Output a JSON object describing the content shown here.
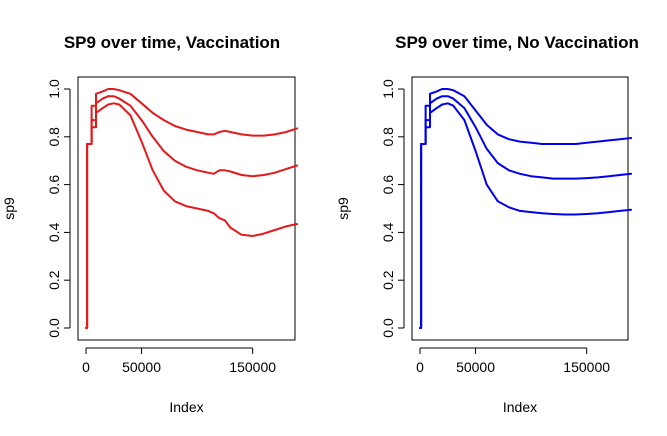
{
  "chart_data": [
    {
      "type": "line",
      "title": "SP9 over time, Vaccination",
      "xlabel": "Index",
      "ylabel": "sp9",
      "xlim": [
        0,
        200000
      ],
      "ylim": [
        0,
        1
      ],
      "xticks": [
        0,
        50000,
        150000
      ],
      "xtick_labels": [
        "0",
        "50000",
        "150000"
      ],
      "yticks": [
        0.0,
        0.2,
        0.4,
        0.6,
        0.8,
        1.0
      ],
      "ytick_labels": [
        "0.0",
        "0.2",
        "0.4",
        "0.6",
        "0.8",
        "1.0"
      ],
      "color": "#e31a1c",
      "series": [
        {
          "x": [
            0,
            1000,
            1000,
            5000,
            5000,
            9000,
            9000,
            15000,
            20000,
            25000,
            30000,
            40000,
            50000,
            60000,
            70000,
            80000,
            90000,
            100000,
            110000,
            115000,
            120000,
            125000,
            130000,
            140000,
            150000,
            160000,
            170000,
            180000,
            190000
          ],
          "y": [
            0.0,
            0.0,
            0.77,
            0.77,
            0.93,
            0.93,
            0.98,
            0.99,
            1.0,
            1.0,
            0.995,
            0.98,
            0.94,
            0.9,
            0.87,
            0.845,
            0.83,
            0.82,
            0.81,
            0.81,
            0.82,
            0.825,
            0.82,
            0.81,
            0.805,
            0.805,
            0.81,
            0.82,
            0.835
          ]
        },
        {
          "x": [
            0,
            1000,
            1000,
            5000,
            5000,
            9000,
            9000,
            15000,
            20000,
            25000,
            30000,
            40000,
            50000,
            60000,
            70000,
            80000,
            90000,
            100000,
            110000,
            115000,
            120000,
            125000,
            130000,
            140000,
            150000,
            160000,
            170000,
            180000,
            190000
          ],
          "y": [
            0.0,
            0.0,
            0.77,
            0.77,
            0.87,
            0.87,
            0.94,
            0.96,
            0.97,
            0.97,
            0.96,
            0.93,
            0.87,
            0.8,
            0.74,
            0.7,
            0.675,
            0.66,
            0.65,
            0.645,
            0.66,
            0.66,
            0.655,
            0.64,
            0.635,
            0.64,
            0.65,
            0.665,
            0.68
          ]
        },
        {
          "x": [
            0,
            1000,
            1000,
            5000,
            5000,
            9000,
            9000,
            15000,
            20000,
            25000,
            30000,
            40000,
            50000,
            60000,
            70000,
            80000,
            90000,
            100000,
            110000,
            115000,
            120000,
            125000,
            130000,
            140000,
            150000,
            160000,
            170000,
            180000,
            190000
          ],
          "y": [
            0.0,
            0.0,
            0.77,
            0.77,
            0.84,
            0.84,
            0.9,
            0.92,
            0.935,
            0.94,
            0.935,
            0.89,
            0.78,
            0.66,
            0.575,
            0.53,
            0.51,
            0.5,
            0.49,
            0.48,
            0.46,
            0.45,
            0.42,
            0.39,
            0.385,
            0.395,
            0.41,
            0.425,
            0.435
          ]
        }
      ]
    },
    {
      "type": "line",
      "title": "SP9 over time, No Vaccination",
      "xlabel": "Index",
      "ylabel": "sp9",
      "xlim": [
        0,
        200000
      ],
      "ylim": [
        0,
        1
      ],
      "xticks": [
        0,
        50000,
        150000
      ],
      "xtick_labels": [
        "0",
        "50000",
        "150000"
      ],
      "yticks": [
        0.0,
        0.2,
        0.4,
        0.6,
        0.8,
        1.0
      ],
      "ytick_labels": [
        "0.0",
        "0.2",
        "0.4",
        "0.6",
        "0.8",
        "1.0"
      ],
      "color": "#0000ee",
      "series": [
        {
          "x": [
            0,
            1000,
            1000,
            5000,
            5000,
            9000,
            9000,
            15000,
            20000,
            25000,
            30000,
            40000,
            50000,
            60000,
            70000,
            80000,
            90000,
            100000,
            110000,
            120000,
            130000,
            140000,
            150000,
            160000,
            170000,
            180000,
            190000
          ],
          "y": [
            0.0,
            0.0,
            0.77,
            0.77,
            0.93,
            0.93,
            0.98,
            0.99,
            1.0,
            1.0,
            0.995,
            0.97,
            0.91,
            0.85,
            0.81,
            0.79,
            0.78,
            0.775,
            0.77,
            0.77,
            0.77,
            0.77,
            0.775,
            0.78,
            0.785,
            0.79,
            0.795
          ]
        },
        {
          "x": [
            0,
            1000,
            1000,
            5000,
            5000,
            9000,
            9000,
            15000,
            20000,
            25000,
            30000,
            40000,
            50000,
            60000,
            70000,
            80000,
            90000,
            100000,
            110000,
            120000,
            130000,
            140000,
            150000,
            160000,
            170000,
            180000,
            190000
          ],
          "y": [
            0.0,
            0.0,
            0.77,
            0.77,
            0.87,
            0.87,
            0.94,
            0.96,
            0.97,
            0.97,
            0.96,
            0.92,
            0.84,
            0.75,
            0.69,
            0.66,
            0.645,
            0.635,
            0.63,
            0.625,
            0.625,
            0.625,
            0.627,
            0.63,
            0.635,
            0.64,
            0.645
          ]
        },
        {
          "x": [
            0,
            1000,
            1000,
            5000,
            5000,
            9000,
            9000,
            15000,
            20000,
            25000,
            30000,
            40000,
            50000,
            60000,
            70000,
            80000,
            90000,
            100000,
            110000,
            120000,
            130000,
            140000,
            150000,
            160000,
            170000,
            180000,
            190000
          ],
          "y": [
            0.0,
            0.0,
            0.77,
            0.77,
            0.84,
            0.84,
            0.9,
            0.92,
            0.935,
            0.94,
            0.93,
            0.87,
            0.74,
            0.6,
            0.53,
            0.505,
            0.49,
            0.485,
            0.48,
            0.477,
            0.475,
            0.475,
            0.477,
            0.48,
            0.485,
            0.49,
            0.495
          ]
        }
      ]
    }
  ]
}
